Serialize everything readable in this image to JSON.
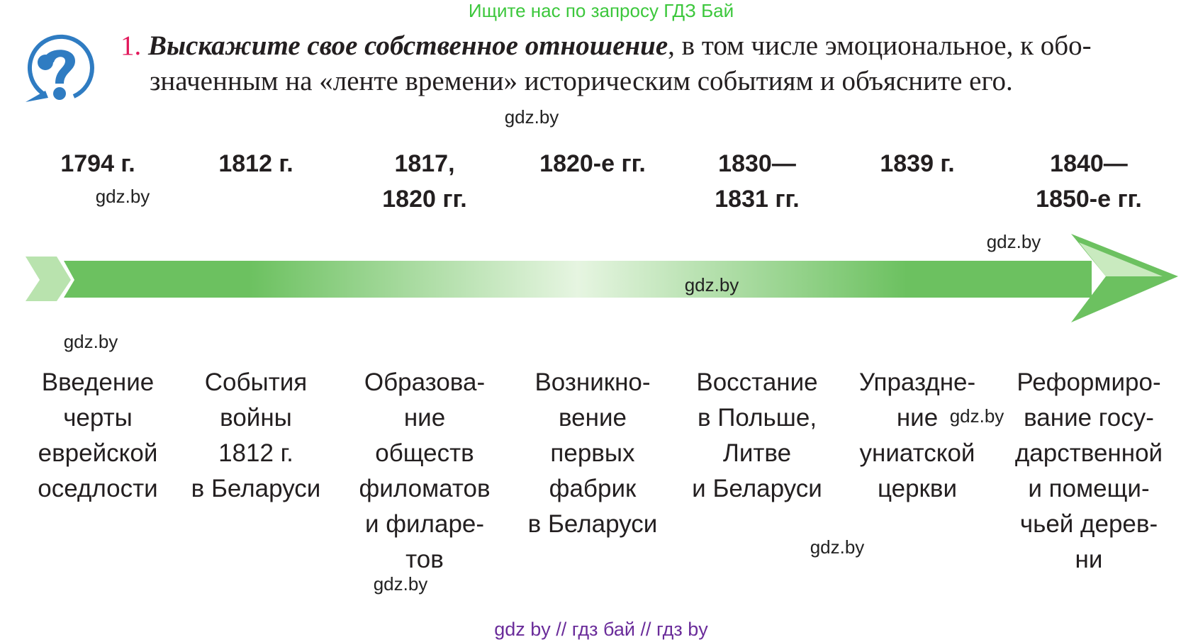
{
  "banner": "Ищите нас по запросу ГДЗ Бай",
  "task": {
    "number": "1.",
    "emphasis": "Выскажите свое собственное отношение",
    "line1_rest": ", в том числе эмоциональное, к обо-",
    "line2": "значенным на «ленте времени» историческим событиям и объясните его."
  },
  "icon": "question-bubble-icon",
  "colors": {
    "accent_number": "#e2185b",
    "icon": "#2f7cc2",
    "arrow": "#6cc160",
    "banner": "#3cc73c",
    "footer": "#6a2c9a"
  },
  "timeline": [
    {
      "year": [
        "1794 г."
      ],
      "event": [
        "Введение",
        "черты",
        "еврейской",
        "оседлости"
      ]
    },
    {
      "year": [
        "1812 г."
      ],
      "event": [
        "События",
        "войны",
        "1812 г.",
        "в Беларуси"
      ]
    },
    {
      "year": [
        "1817,",
        "1820 гг."
      ],
      "event": [
        "Образова-",
        "ние",
        "обществ",
        "филоматов",
        "и филаре-",
        "тов"
      ]
    },
    {
      "year": [
        "1820-е гг."
      ],
      "event": [
        "Возникно-",
        "вение",
        "первых",
        "фабрик",
        "в Беларуси"
      ]
    },
    {
      "year": [
        "1830—",
        "1831 гг."
      ],
      "event": [
        "Восстание",
        "в Польше,",
        "Литве",
        "и Беларуси"
      ]
    },
    {
      "year": [
        "1839 г."
      ],
      "event": [
        "Упраздне-",
        "ние",
        "униатской",
        "церкви"
      ]
    },
    {
      "year": [
        "1840—",
        "1850-е  гг."
      ],
      "event": [
        "Реформиро-",
        "вание госу-",
        "дарственной",
        "и помещи-",
        "чьей дерев-",
        "ни"
      ]
    }
  ],
  "watermark": "gdz.by",
  "footer": "gdz by  //  гдз бай  //  гдз by"
}
